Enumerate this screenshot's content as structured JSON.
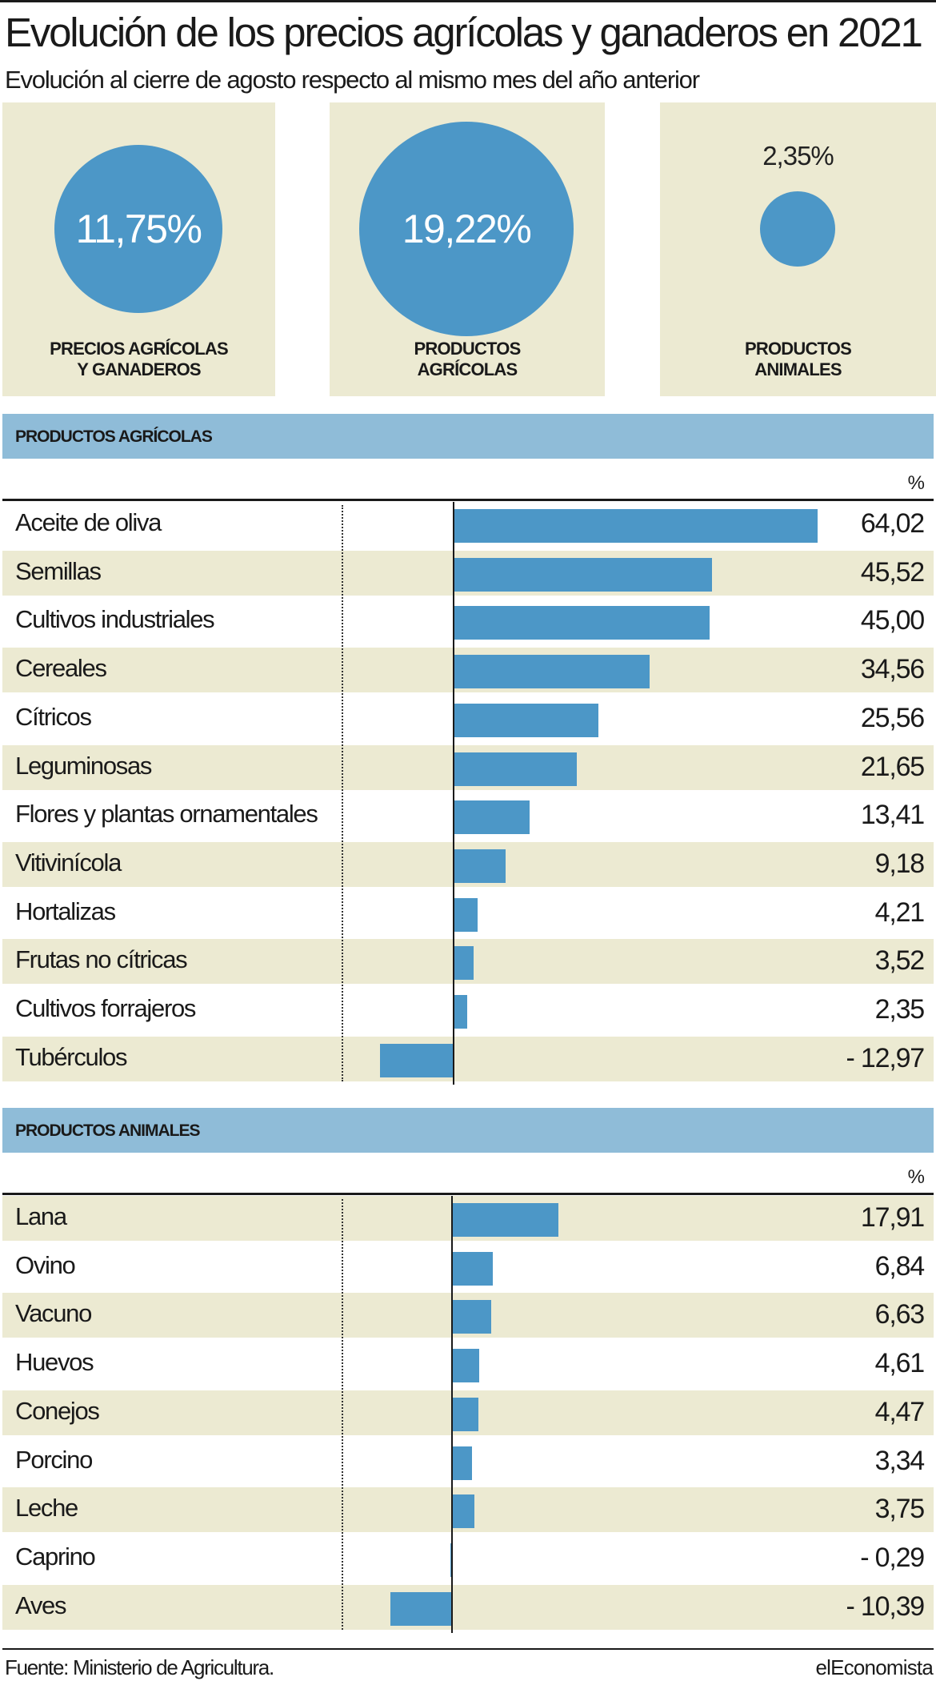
{
  "header": {
    "title": "Evolución de los precios agrícolas y ganaderos en 2021",
    "subtitle": "Evolución al cierre de agosto respecto al mismo mes del año anterior"
  },
  "kpis": [
    {
      "value": "11,75%",
      "label": "PRECIOS AGRÍCOLAS\nY GANADEROS",
      "value_pct": 11.75
    },
    {
      "value": "19,22%",
      "label": "PRODUCTOS\nAGRÍCOLAS",
      "value_pct": 19.22
    },
    {
      "value": "2,35%",
      "label": "PRODUCTOS\nANIMALES",
      "value_pct": 2.35
    }
  ],
  "sections": [
    {
      "title": "PRODUCTOS AGRÍCOLAS",
      "unit": "%"
    },
    {
      "title": "PRODUCTOS ANIMALES",
      "unit": "%"
    }
  ],
  "chart_data": [
    {
      "type": "bar",
      "orientation": "horizontal",
      "categories": [
        "Aceite de oliva",
        "Semillas",
        "Cultivos industriales",
        "Cereales",
        "Cítricos",
        "Leguminosas",
        "Flores y plantas ornamentales",
        "Vitivinícola",
        "Hortalizas",
        "Frutas no cítricas",
        "Cultivos forrajeros",
        "Tubérculos"
      ],
      "values": [
        64.02,
        45.52,
        45.0,
        34.56,
        25.56,
        21.65,
        13.41,
        9.18,
        4.21,
        3.52,
        2.35,
        -12.97
      ],
      "value_labels": [
        "64,02",
        "45,52",
        "45,00",
        "34,56",
        "25,56",
        "21,65",
        "13,41",
        "9,18",
        "4,21",
        "3,52",
        "2,35",
        "- 12,97"
      ]
    },
    {
      "type": "bar",
      "orientation": "horizontal",
      "categories": [
        "Lana",
        "Ovino",
        "Vacuno",
        "Huevos",
        "Conejos",
        "Porcino",
        "Leche",
        "Caprino",
        "Aves"
      ],
      "values": [
        17.91,
        6.84,
        6.63,
        4.61,
        4.47,
        3.34,
        3.75,
        -0.29,
        -10.39
      ],
      "value_labels": [
        "17,91",
        "6,84",
        "6,63",
        "4,61",
        "4,47",
        "3,34",
        "3,75",
        "- 0,29",
        "- 10,39"
      ]
    }
  ],
  "footer": {
    "source": "Fuente: Ministerio de Agricultura.",
    "brand": "elEconomista"
  },
  "colors": {
    "bar": "#4c97c7",
    "band": "#8fbcd8",
    "panel": "#ecead2"
  }
}
